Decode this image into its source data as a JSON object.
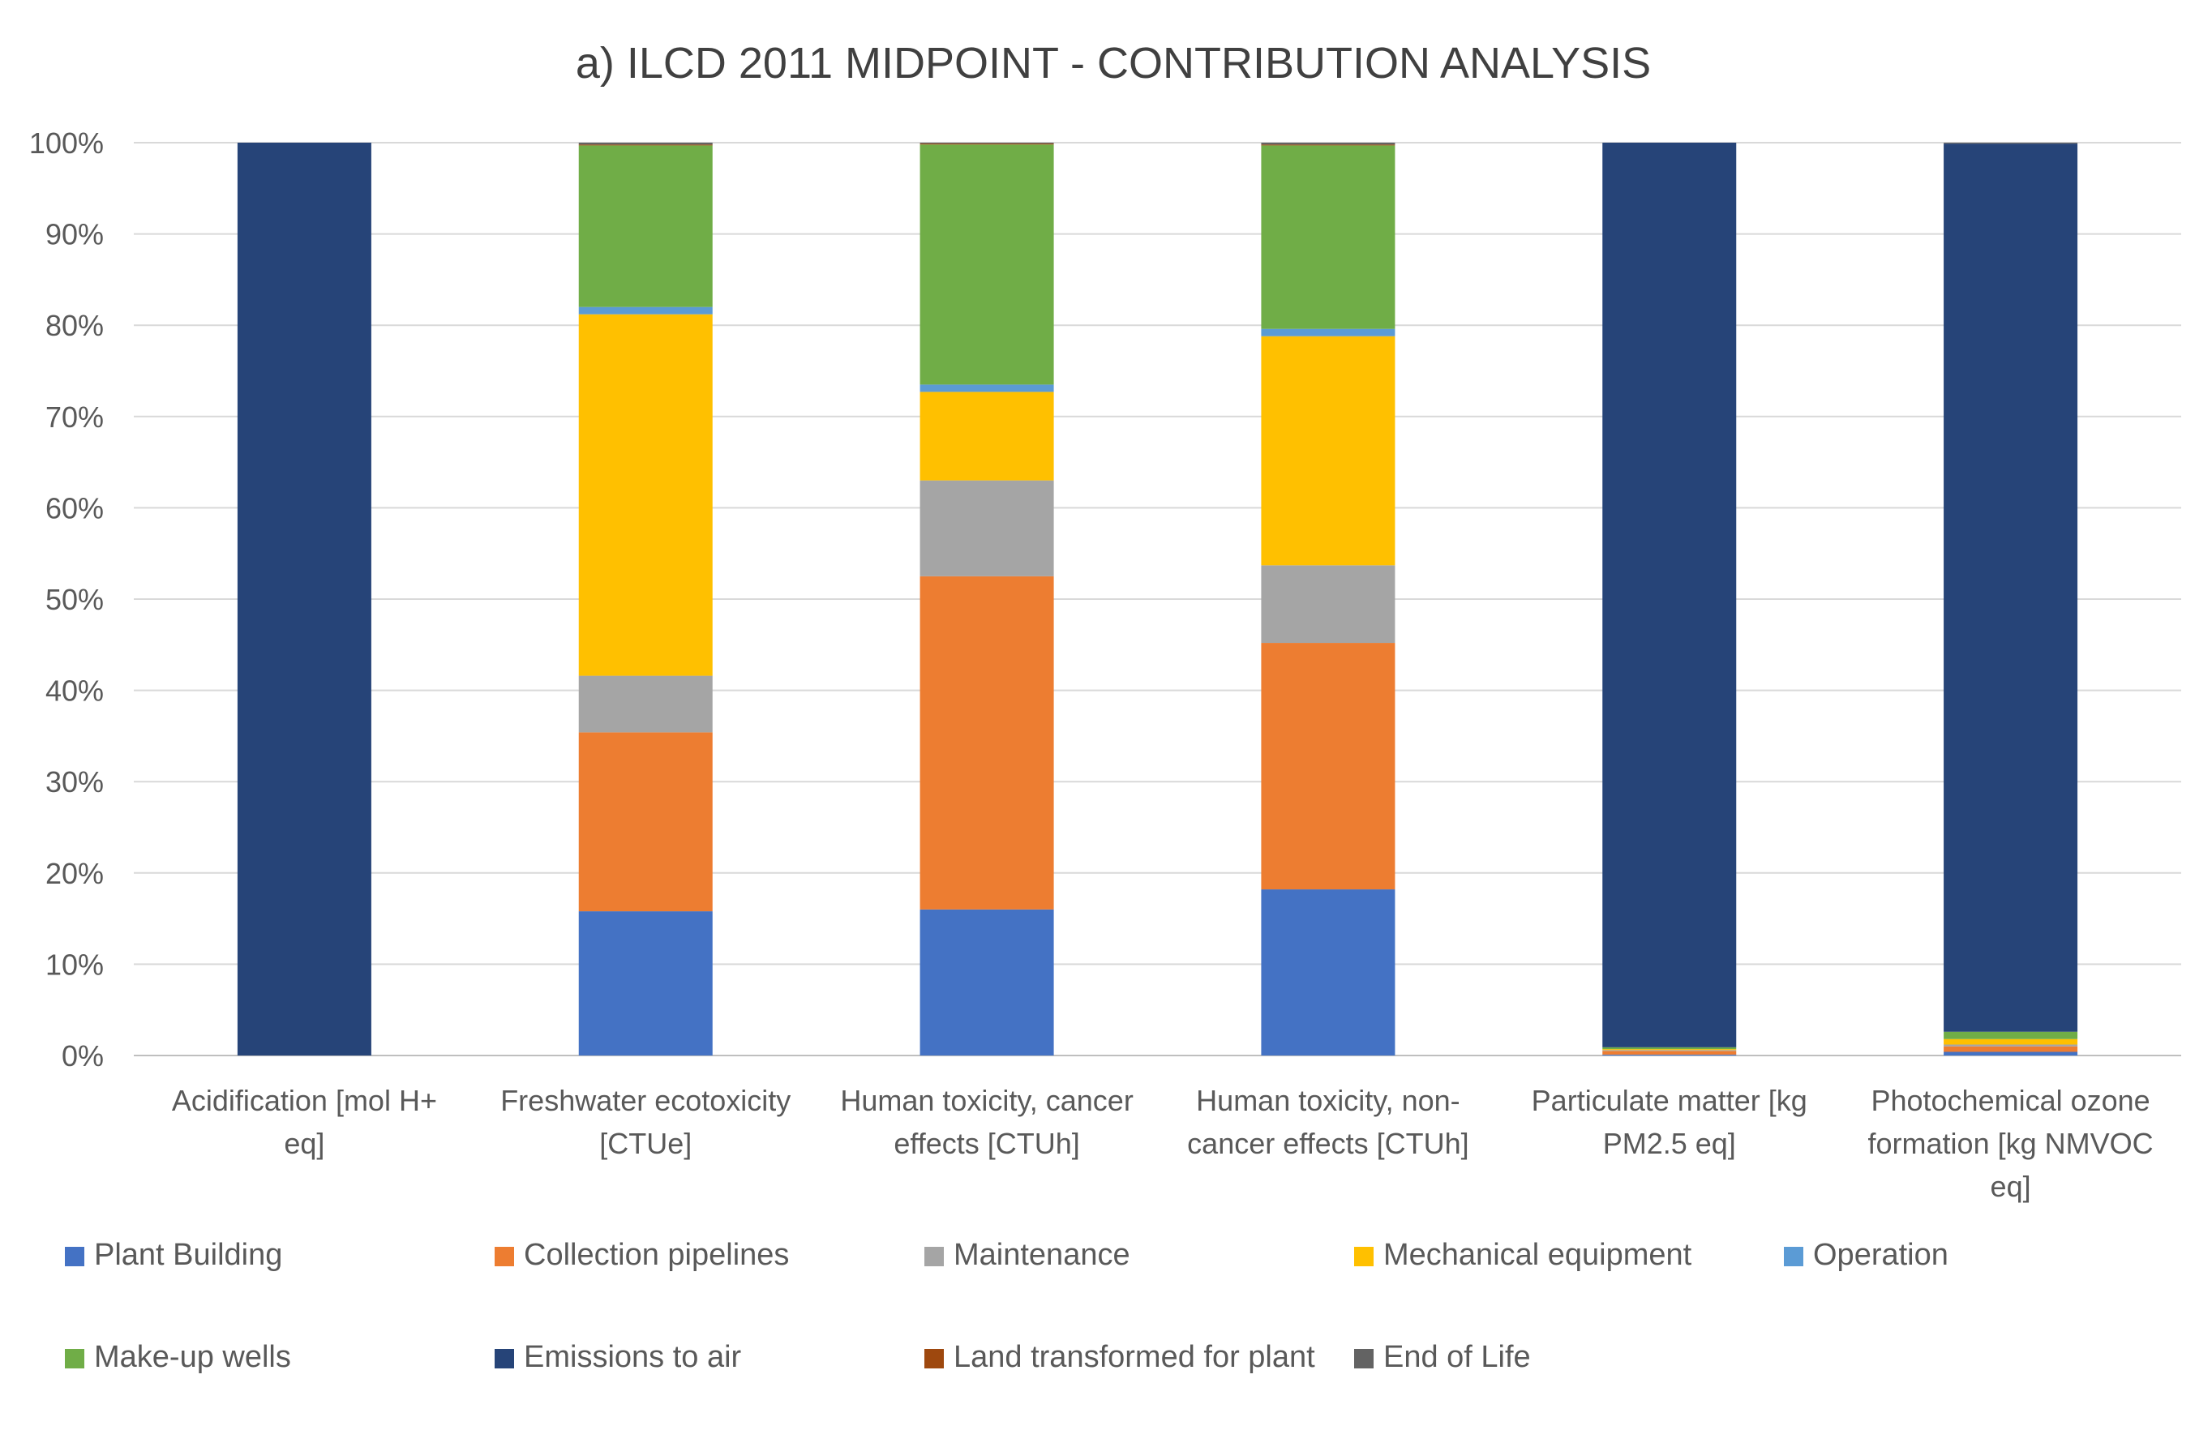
{
  "chart_data": {
    "type": "bar",
    "stacked": true,
    "title": "a) ILCD 2011 MIDPOINT - CONTRIBUTION ANALYSIS",
    "xlabel": "",
    "ylabel": "",
    "ylim": [
      0,
      100
    ],
    "y_ticks": [
      "0%",
      "10%",
      "20%",
      "30%",
      "40%",
      "50%",
      "60%",
      "70%",
      "80%",
      "90%",
      "100%"
    ],
    "grid": true,
    "legend_position": "bottom",
    "categories": [
      [
        "Acidification [mol H+",
        "eq]"
      ],
      [
        "Freshwater ecotoxicity",
        "[CTUe]"
      ],
      [
        "Human toxicity, cancer",
        "effects [CTUh]"
      ],
      [
        "Human toxicity, non-",
        "cancer effects [CTUh]"
      ],
      [
        "Particulate matter [kg",
        "PM2.5 eq]"
      ],
      [
        "Photochemical ozone",
        "formation [kg NMVOC",
        "eq]"
      ]
    ],
    "series": [
      {
        "name": "Plant Building",
        "color": "#4472C4",
        "values": [
          0,
          15.8,
          16,
          18.2,
          0.1,
          0.4
        ]
      },
      {
        "name": "Collection pipelines",
        "color": "#ED7D31",
        "values": [
          0,
          19.6,
          36.5,
          27,
          0.4,
          0.6
        ]
      },
      {
        "name": "Maintenance",
        "color": "#A5A5A5",
        "values": [
          0,
          6.2,
          10.5,
          8.5,
          0.1,
          0.2
        ]
      },
      {
        "name": "Mechanical equipment",
        "color": "#FFC000",
        "values": [
          0,
          39.6,
          9.7,
          25.1,
          0.1,
          0.6
        ]
      },
      {
        "name": "Operation",
        "color": "#5B9BD5",
        "values": [
          0,
          0.8,
          0.8,
          0.8,
          0,
          0
        ]
      },
      {
        "name": "Make-up wells",
        "color": "#70AD47",
        "values": [
          0,
          17.7,
          26.3,
          20.1,
          0.2,
          0.8
        ]
      },
      {
        "name": "Emissions to air",
        "color": "#264478",
        "values": [
          100,
          0,
          0,
          0,
          99.1,
          97.3
        ]
      },
      {
        "name": "Land transformed for plant",
        "color": "#9E480E",
        "values": [
          0,
          0.1,
          0.1,
          0.1,
          0,
          0
        ]
      },
      {
        "name": "End of Life",
        "color": "#636363",
        "values": [
          0,
          0.2,
          0.1,
          0.2,
          0,
          0.1
        ]
      }
    ]
  }
}
